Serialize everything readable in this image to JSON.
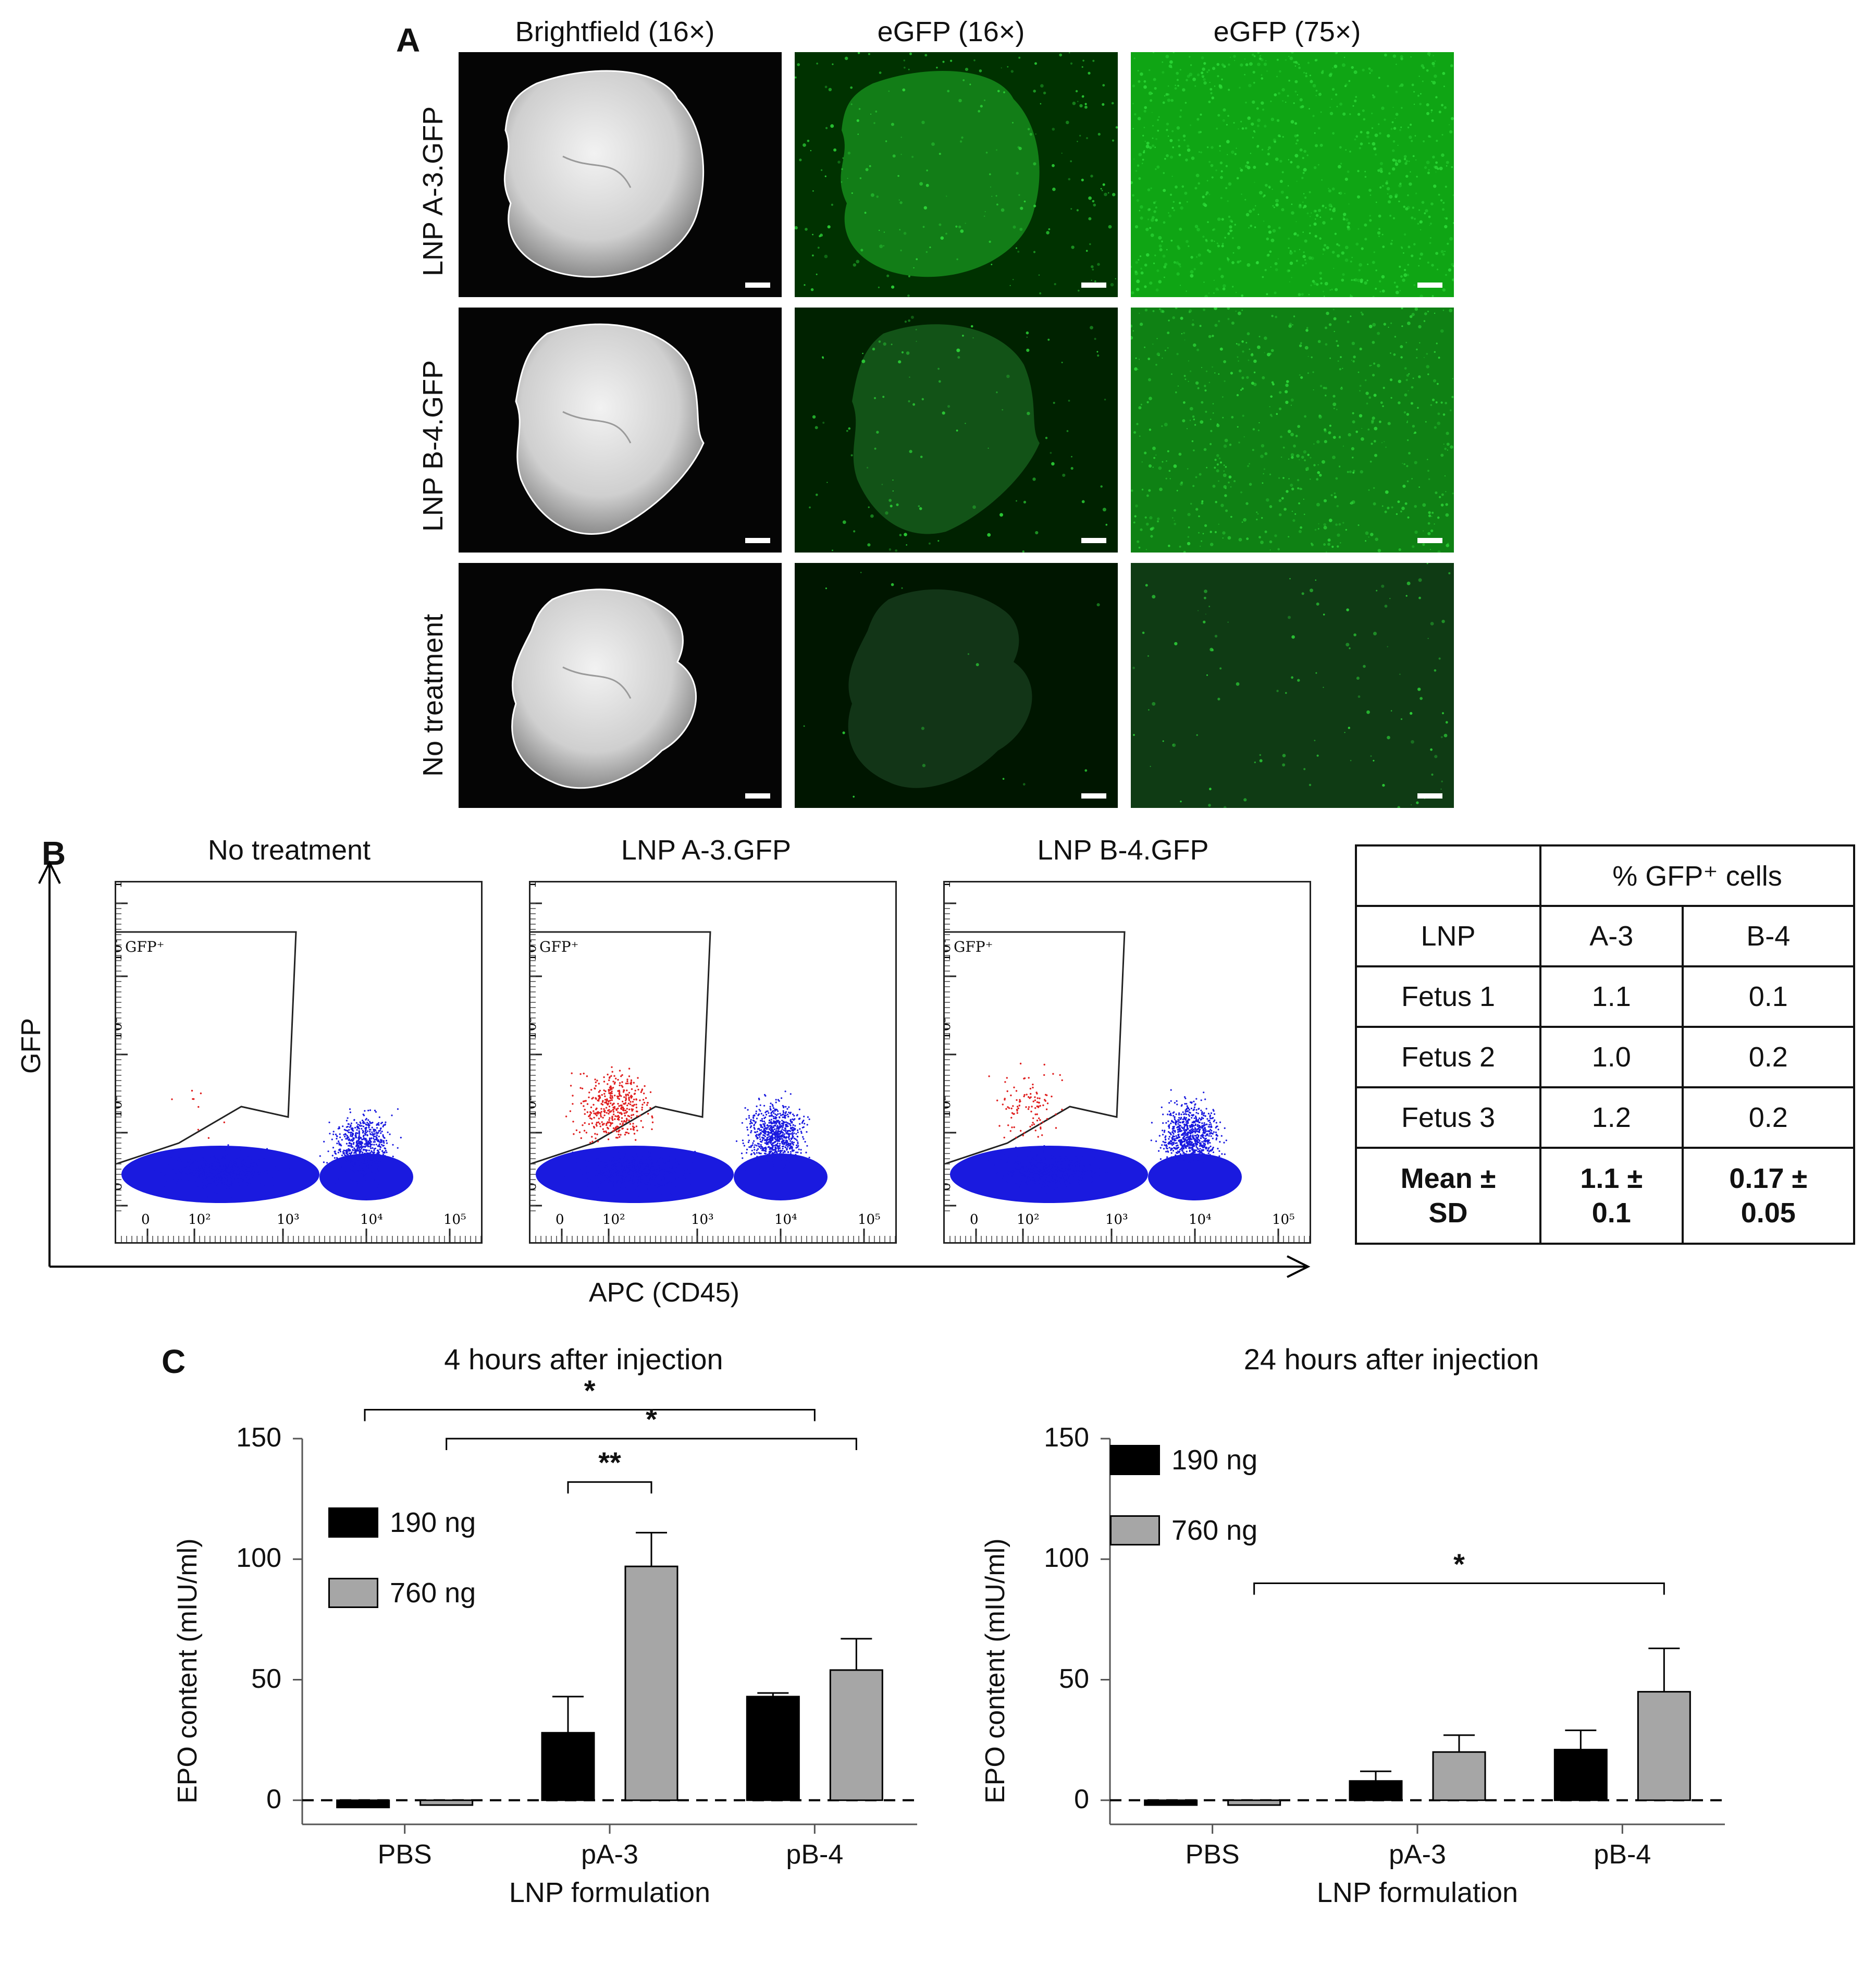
{
  "panelA": {
    "letter": "A",
    "columns": [
      "Brightfield (16×)",
      "eGFP (16×)",
      "eGFP (75×)"
    ],
    "rows": [
      "LNP A-3.GFP",
      "LNP B-4.GFP",
      "No treatment"
    ],
    "colors": {
      "background": "#000000",
      "gfp": "#2fdc3a",
      "tissue": "#e6e6e6"
    }
  },
  "panelB": {
    "letter": "B",
    "plots": [
      {
        "title": "No treatment",
        "gate_label": "GFP⁺"
      },
      {
        "title": "LNP A-3.GFP",
        "gate_label": "GFP⁺"
      },
      {
        "title": "LNP B-4.GFP",
        "gate_label": "GFP⁺"
      }
    ],
    "y_axis_title": "GFP",
    "x_axis_title": "APC (CD45)",
    "y_ticks": [
      "0",
      "10²",
      "10³",
      "10⁴",
      "10⁵"
    ],
    "x_ticks": [
      "0",
      "10²",
      "10³",
      "10⁴",
      "10⁵"
    ],
    "colors": {
      "negative": "#1a1adf",
      "positive": "#e02020"
    },
    "table": {
      "header": "% GFP⁺ cells",
      "columns": [
        "LNP",
        "A-3",
        "B-4"
      ],
      "rows": [
        [
          "Fetus 1",
          "1.1",
          "0.1"
        ],
        [
          "Fetus 2",
          "1.0",
          "0.2"
        ],
        [
          "Fetus 3",
          "1.2",
          "0.2"
        ]
      ],
      "summary": {
        "label_line1": "Mean ±",
        "label_line2": "SD",
        "a3_line1": "1.1 ±",
        "a3_line2": "0.1",
        "b4_line1": "0.17 ±",
        "b4_line2": "0.05"
      }
    }
  },
  "panelC": {
    "letter": "C",
    "significance": {
      "single": "*",
      "double": "**"
    }
  },
  "chart_data": [
    {
      "type": "bar",
      "title": "4 hours after injection",
      "xlabel": "LNP formulation",
      "ylabel": "EPO content (mIU/ml)",
      "ylim": [
        -10,
        150
      ],
      "yticks": [
        "0",
        "50",
        "100",
        "150"
      ],
      "categories": [
        "PBS",
        "pA-3",
        "pB-4"
      ],
      "series": [
        {
          "name": "190 ng",
          "color": "#000000",
          "values": [
            -3,
            28,
            43
          ],
          "errors": [
            0,
            15,
            1.5
          ]
        },
        {
          "name": "760 ng",
          "color": "#a6a6a6",
          "values": [
            -2,
            97,
            54
          ],
          "errors": [
            0,
            14,
            13
          ]
        }
      ],
      "legend": "top-left",
      "reference_line": 0
    },
    {
      "type": "bar",
      "title": "24 hours after injection",
      "xlabel": "LNP formulation",
      "ylabel": "EPO content (mIU/ml)",
      "ylim": [
        -10,
        150
      ],
      "yticks": [
        "0",
        "50",
        "100",
        "150"
      ],
      "categories": [
        "PBS",
        "pA-3",
        "pB-4"
      ],
      "series": [
        {
          "name": "190 ng",
          "color": "#000000",
          "values": [
            -2,
            8,
            21
          ],
          "errors": [
            0,
            4,
            8
          ]
        },
        {
          "name": "760 ng",
          "color": "#a6a6a6",
          "values": [
            -2,
            20,
            45
          ],
          "errors": [
            0,
            7,
            18
          ]
        }
      ],
      "legend": "top-left",
      "reference_line": 0
    }
  ]
}
